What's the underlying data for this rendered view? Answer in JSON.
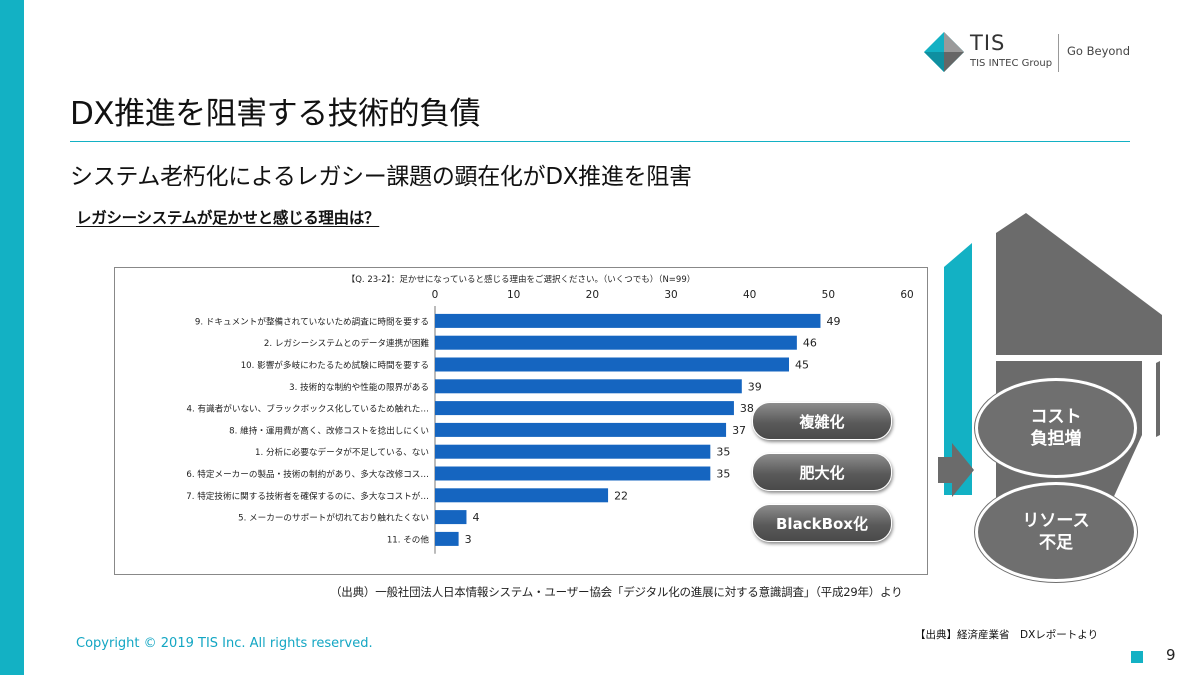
{
  "logo": {
    "name": "TIS",
    "group": "TIS INTEC Group",
    "tagline": "Go Beyond"
  },
  "slide": {
    "title": "DX推進を阻害する技術的負債",
    "subtitle": "システム老朽化によるレガシー課題の顕在化がDX推進を阻害",
    "chart_heading": "レガシーシステムが足かせと感じる理由は？",
    "source_chart": "（出典）一般社団法人日本情報システム・ユーザー協会「デジタル化の進展に対する意識調査」（平成29年）より",
    "source_report": "【出典】経済産業省　DXレポートより",
    "copyright": "Copyright © 2019 TIS Inc. All rights reserved.",
    "page_number": "9"
  },
  "pills": [
    "複雑化",
    "肥大化",
    "BlackBox化"
  ],
  "circles": [
    {
      "line1": "コスト",
      "line2": "負担増"
    },
    {
      "line1": "リソース",
      "line2": "不足"
    }
  ],
  "colors": {
    "accent": "#13b1c4",
    "bar": "#1565c0",
    "pill": "#5a5a5a",
    "circle": "#6f6f6f",
    "shape": "#6b6b6b"
  },
  "chart_data": {
    "type": "bar",
    "orientation": "horizontal",
    "title": "【Q. 23-2】：足かせになっていると感じる理由をご選択ください。（いくつでも）（N=99）",
    "xlim": [
      0,
      60
    ],
    "xticks": [
      "0",
      "10",
      "20",
      "30",
      "40",
      "50",
      "60"
    ],
    "categories": [
      "9. ドキュメントが整備されていないため調査に時間を要する",
      "2. レガシーシステムとのデータ連携が困難",
      "10. 影響が多岐にわたるため試験に時間を要する",
      "3. 技術的な制約や性能の限界がある",
      "4. 有識者がいない、ブラックボックス化しているため触れた…",
      "8. 維持・運用費が高く、改修コストを捻出しにくい",
      "1. 分析に必要なデータが不足している、ない",
      "6. 特定メーカーの製品・技術の制約があり、多大な改修コス…",
      "7. 特定技術に関する技術者を確保するのに、多大なコストが…",
      "5. メーカーのサポートが切れており触れたくない",
      "11. その他"
    ],
    "values": [
      49,
      46,
      45,
      39,
      38,
      37,
      35,
      35,
      22,
      4,
      3
    ],
    "grid": false,
    "legend": "none"
  }
}
